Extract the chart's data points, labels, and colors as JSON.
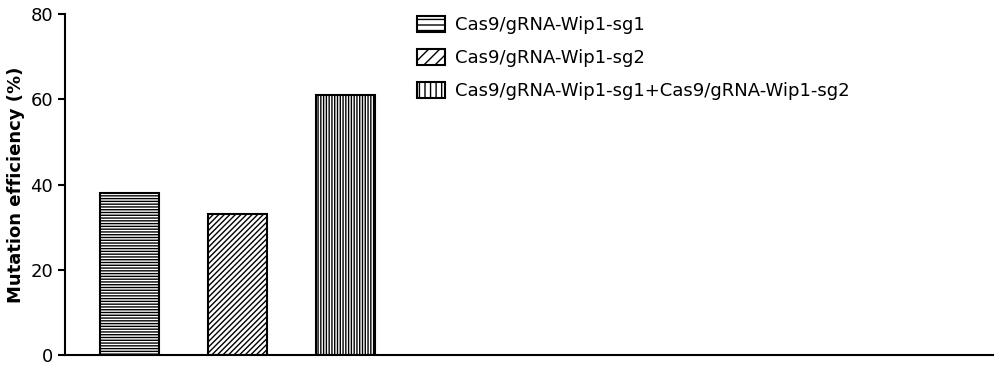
{
  "values": [
    38,
    33,
    61
  ],
  "hatch_patterns": [
    "------",
    "//////",
    "||||||"
  ],
  "legend_labels": [
    "Cas9/gRNA-Wip1-sg1",
    "Cas9/gRNA-Wip1-sg2",
    "Cas9/gRNA-Wip1-sg1+Cas9/gRNA-Wip1-sg2"
  ],
  "legend_hatch_patterns": [
    "---",
    "///",
    "|||"
  ],
  "ylabel": "Mutation efficiency (%)",
  "ylim": [
    0,
    80
  ],
  "yticks": [
    0,
    20,
    40,
    60,
    80
  ],
  "bar_positions": [
    1,
    2,
    3
  ],
  "bar_width": 0.55,
  "bar_facecolor": "white",
  "bar_edgecolor": "black",
  "background_color": "white",
  "legend_patch_facecolor": "white",
  "legend_patch_edgecolor": "black",
  "font_size": 13,
  "legend_font_size": 13,
  "xlim": [
    0.4,
    9.0
  ]
}
